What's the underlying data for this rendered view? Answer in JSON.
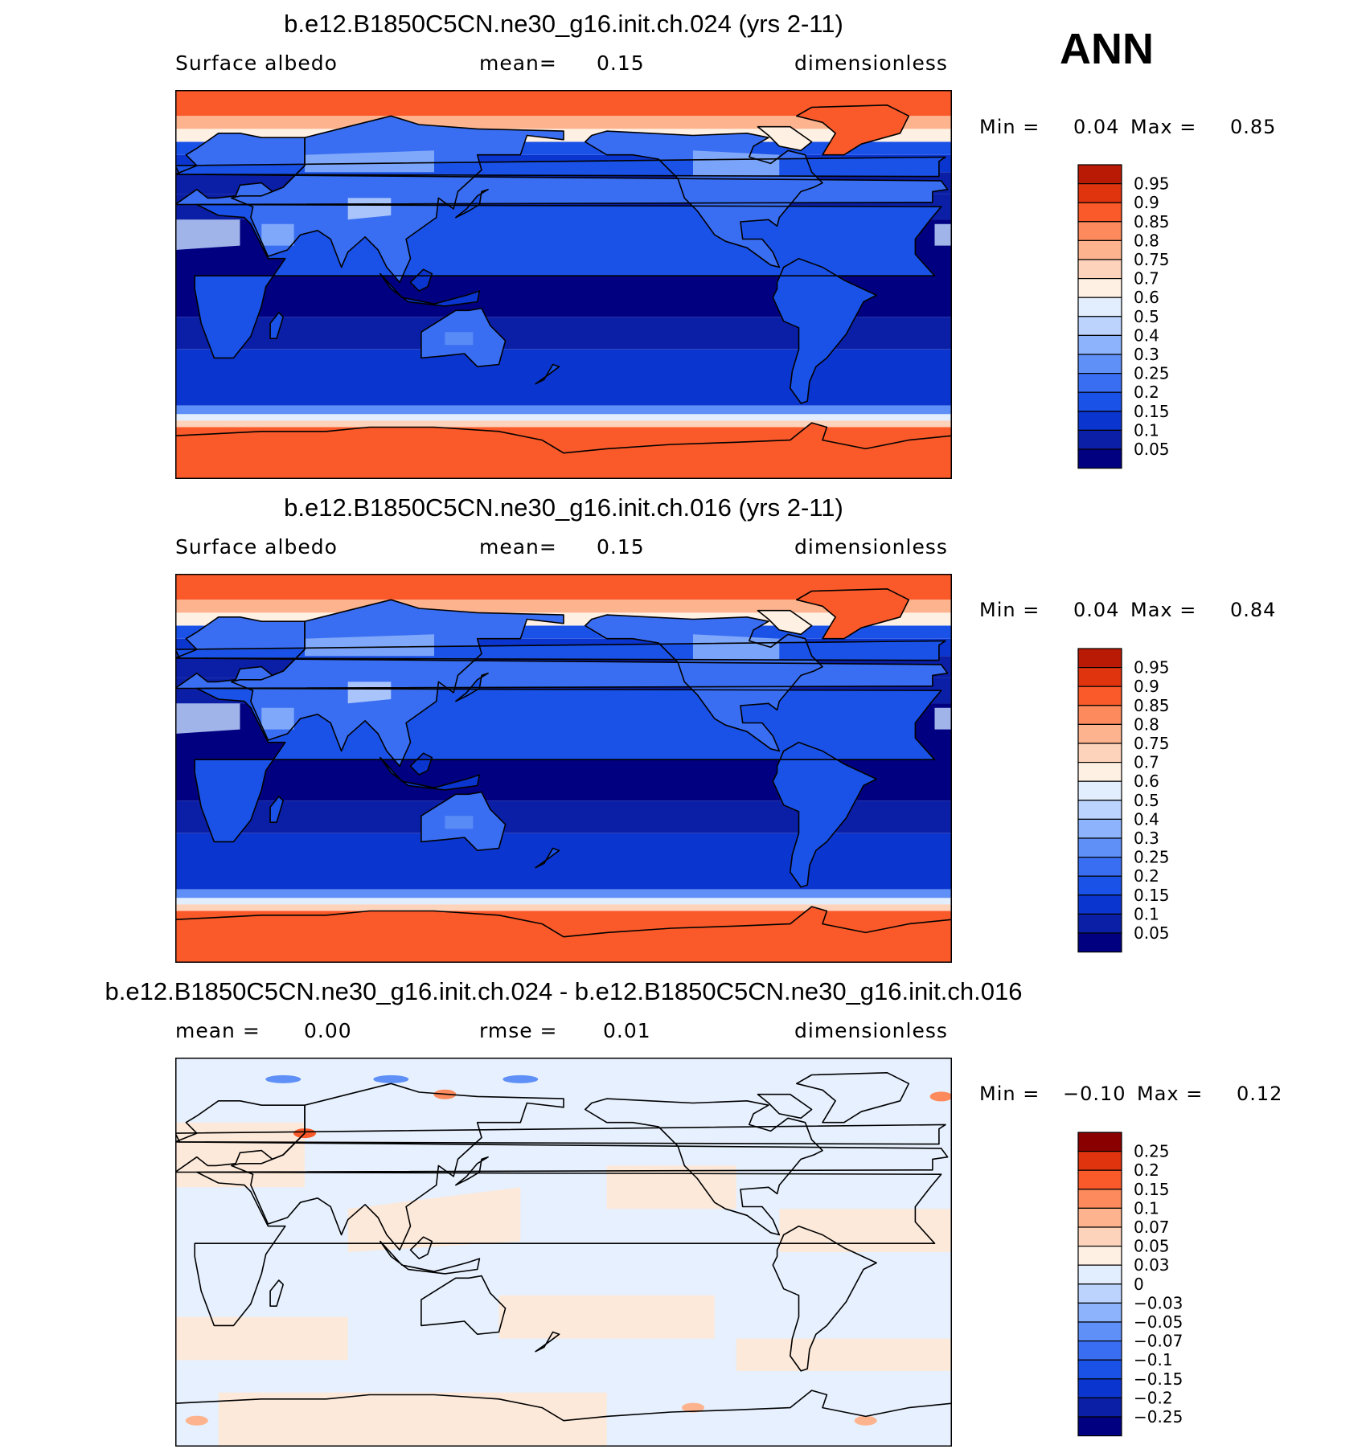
{
  "season": "ANN",
  "color_scale_abs": [
    "#000080",
    "#0a1fa6",
    "#0b35cf",
    "#1a52e8",
    "#3a6ef2",
    "#5f90f7",
    "#8cb3fb",
    "#bcd4fd",
    "#e2eefe",
    "#fff0e4",
    "#fdd3bb",
    "#fdb48e",
    "#fc8a5c",
    "#fa5a2a",
    "#e0340f",
    "#b81a05",
    "#8a0000"
  ],
  "legend_abs": [
    "0.95",
    "0.9",
    "0.85",
    "0.8",
    "0.75",
    "0.7",
    "0.6",
    "0.5",
    "0.4",
    "0.3",
    "0.25",
    "0.2",
    "0.15",
    "0.1",
    "0.05"
  ],
  "legend_diff": [
    "0.25",
    "0.2",
    "0.15",
    "0.1",
    "0.07",
    "0.05",
    "0.03",
    "0",
    "−0.03",
    "−0.05",
    "−0.07",
    "−0.1",
    "−0.15",
    "−0.2",
    "−0.25"
  ],
  "panels": [
    {
      "title": "b.e12.B1850C5CN.ne30_g16.init.ch.024 (yrs 2-11)",
      "left_label": "Surface albedo",
      "center_label": "mean=",
      "center_value": "0.15",
      "right_label": "dimensionless",
      "min_label": "Min =",
      "min_value": "0.04",
      "max_label": "Max =",
      "max_value": "0.85"
    },
    {
      "title": "b.e12.B1850C5CN.ne30_g16.init.ch.016 (yrs 2-11)",
      "left_label": "Surface albedo",
      "center_label": "mean=",
      "center_value": "0.15",
      "right_label": "dimensionless",
      "min_label": "Min =",
      "min_value": "0.04",
      "max_label": "Max =",
      "max_value": "0.84"
    },
    {
      "title": "b.e12.B1850C5CN.ne30_g16.init.ch.024 - b.e12.B1850C5CN.ne30_g16.init.ch.016",
      "left_label": "mean =",
      "left_value": "0.00",
      "center_label": "rmse =",
      "center_value": "0.01",
      "right_label": "dimensionless",
      "min_label": "Min =",
      "min_value": "−0.10",
      "max_label": "Max =",
      "max_value": "0.12"
    }
  ]
}
